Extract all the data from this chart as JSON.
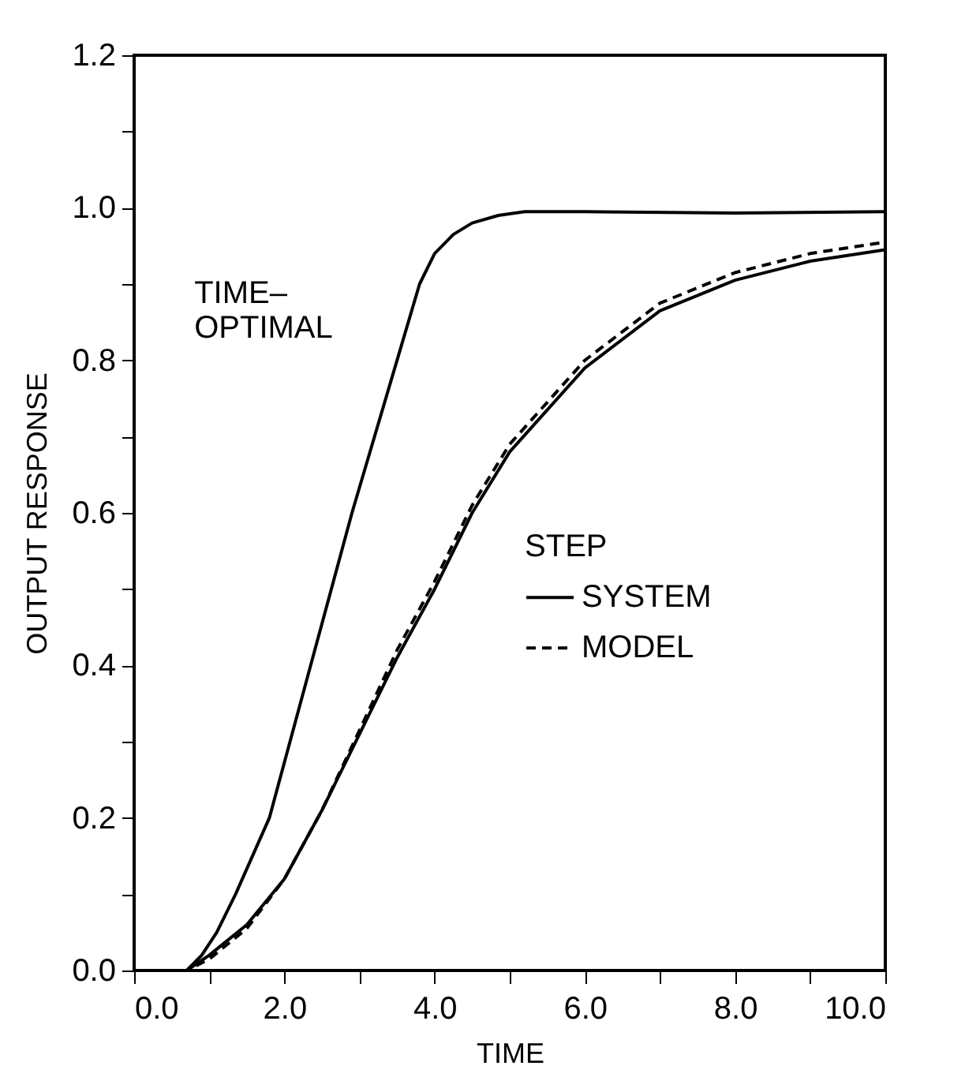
{
  "chart_data": {
    "type": "line",
    "xlabel": "TIME",
    "ylabel": "OUTPUT RESPONSE",
    "legend_title": "STEP",
    "legend": "right",
    "xlim": [
      0,
      10
    ],
    "ylim": [
      0,
      1.2
    ],
    "xticks": [
      {
        "value": 0,
        "label": "0.0"
      },
      {
        "value": 1,
        "label": null
      },
      {
        "value": 2,
        "label": "2.0"
      },
      {
        "value": 3,
        "label": null
      },
      {
        "value": 4,
        "label": "4.0"
      },
      {
        "value": 5,
        "label": null
      },
      {
        "value": 6,
        "label": "6.0"
      },
      {
        "value": 7,
        "label": null
      },
      {
        "value": 8,
        "label": "8.0"
      },
      {
        "value": 9,
        "label": null
      },
      {
        "value": 10,
        "label": "10.0"
      }
    ],
    "yticks": [
      {
        "value": 0,
        "label": "0.0"
      },
      {
        "value": 0.1,
        "label": null
      },
      {
        "value": 0.2,
        "label": "0.2"
      },
      {
        "value": 0.3,
        "label": null
      },
      {
        "value": 0.4,
        "label": "0.4"
      },
      {
        "value": 0.5,
        "label": null
      },
      {
        "value": 0.6,
        "label": "0.6"
      },
      {
        "value": 0.7,
        "label": null
      },
      {
        "value": 0.8,
        "label": "0.8"
      },
      {
        "value": 0.9,
        "label": null
      },
      {
        "value": 1.0,
        "label": "1.0"
      },
      {
        "value": 1.1,
        "label": null
      },
      {
        "value": 1.2,
        "label": "1.2"
      }
    ],
    "grid": false,
    "marker": "none",
    "annotations": [
      "TIME– OPTIMAL"
    ],
    "series": [
      {
        "color": "#000000",
        "line_style": "solid",
        "x": [
          0,
          0.7,
          0.9,
          1.1,
          1.35,
          1.8,
          2.35,
          2.9,
          3.5,
          3.8,
          4.0,
          4.25,
          4.5,
          4.85,
          5.2,
          6,
          8,
          10
        ],
        "values": [
          0,
          0,
          0.02,
          0.05,
          0.1,
          0.2,
          0.4,
          0.6,
          0.8,
          0.9,
          0.94,
          0.965,
          0.98,
          0.99,
          0.995,
          0.995,
          0.993,
          0.995
        ]
      },
      {
        "name": "SYSTEM",
        "color": "#000000",
        "line_style": "solid",
        "x": [
          0,
          0.7,
          1,
          1.5,
          2,
          2.5,
          3,
          3.5,
          4,
          4.5,
          5,
          6,
          7,
          8,
          9,
          10
        ],
        "values": [
          0,
          0,
          0.02,
          0.06,
          0.12,
          0.21,
          0.31,
          0.41,
          0.5,
          0.6,
          0.68,
          0.79,
          0.865,
          0.905,
          0.93,
          0.945
        ]
      },
      {
        "name": "MODEL",
        "color": "#000000",
        "line_style": "dashed",
        "x": [
          0,
          0.7,
          1,
          1.5,
          2,
          2.5,
          3,
          3.5,
          4,
          4.5,
          5,
          6,
          7,
          8,
          9,
          10
        ],
        "values": [
          0,
          0,
          0.015,
          0.055,
          0.12,
          0.21,
          0.315,
          0.42,
          0.51,
          0.61,
          0.69,
          0.8,
          0.875,
          0.915,
          0.94,
          0.955
        ]
      }
    ]
  }
}
